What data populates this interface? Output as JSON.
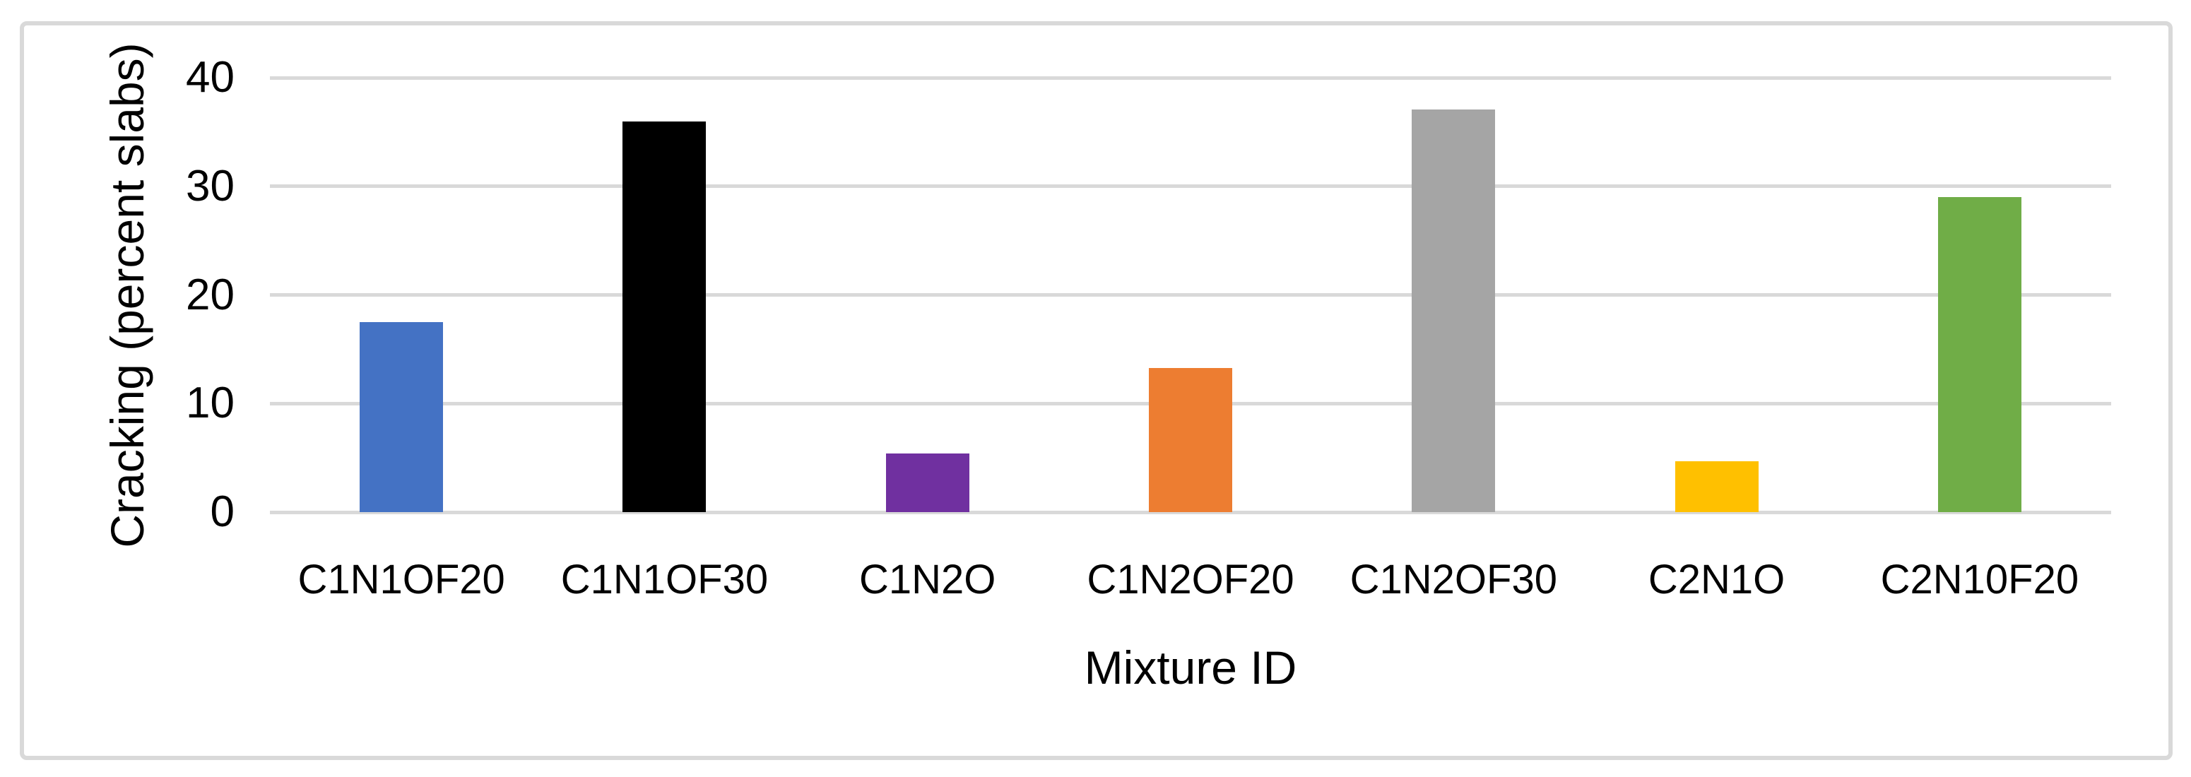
{
  "chart_data": {
    "type": "bar",
    "categories": [
      "C1N1OF20",
      "C1N1OF30",
      "C1N2O",
      "C1N2OF20",
      "C1N2OF30",
      "C2N1O",
      "C2N10F20"
    ],
    "values": [
      17.5,
      36,
      5.4,
      13.3,
      37.1,
      4.7,
      29
    ],
    "bar_colors": [
      "#4472C4",
      "#000000",
      "#7030A0",
      "#ED7D31",
      "#A5A5A5",
      "#FFC000",
      "#70AD47"
    ],
    "title": "",
    "xlabel": "Mixture ID",
    "ylabel": "Cracking (percent slabs)",
    "ylim": [
      0,
      40
    ],
    "yticks": [
      0,
      10,
      20,
      30,
      40
    ],
    "grid": "horizontal",
    "legend_position": "none",
    "gridline_color": "#D9D9D9",
    "figure_border_color": "#D9D9D9",
    "background_color": "#FFFFFF",
    "text_color": "#000000"
  }
}
